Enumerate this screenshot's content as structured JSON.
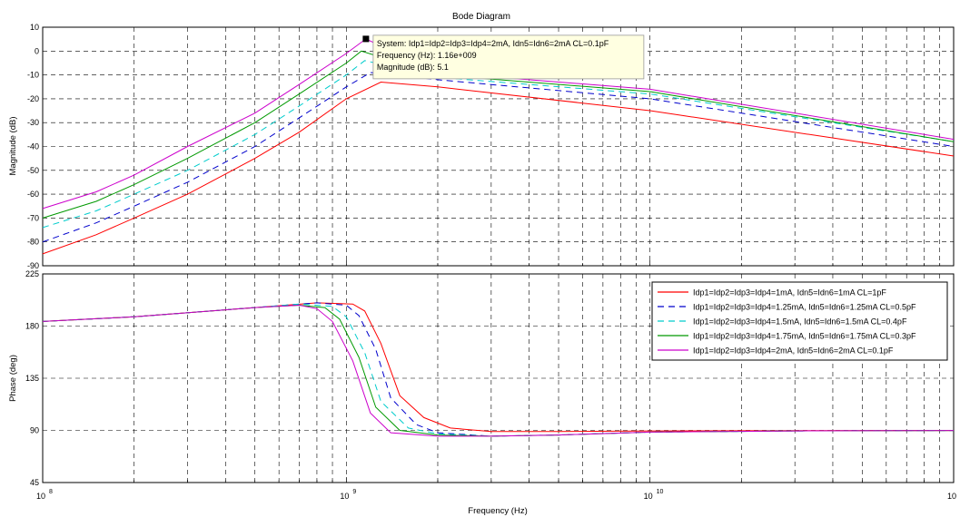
{
  "chart_data": {
    "type": "line",
    "title": "Bode Diagram",
    "xlabel": "Frequency  (Hz)",
    "x_scale": "log",
    "xlim": [
      100000000,
      100000000000
    ],
    "x_ticks": [
      {
        "value": 100000000,
        "base": "10",
        "exp": "8"
      },
      {
        "value": 1000000000,
        "base": "10",
        "exp": "9"
      },
      {
        "value": 10000000000,
        "base": "10",
        "exp": "10"
      },
      {
        "value": 100000000000,
        "base": "10",
        "exp": "11"
      }
    ],
    "grid": true,
    "legend_position": "top-right of phase plot",
    "series": [
      {
        "name": "Idp1=Idp2=Idp3=Idp4=1mA, Idn5=Idn6=1mA CL=1pF",
        "color": "#ff0000",
        "dash": "solid",
        "magnitude": {
          "x": [
            100000000.0,
            150000000.0,
            200000000.0,
            300000000.0,
            500000000.0,
            700000000.0,
            1000000000.0,
            1300000000.0,
            2000000000.0,
            10000000000.0,
            100000000000.0
          ],
          "y": [
            -85,
            -77,
            -70,
            -60,
            -45,
            -34,
            -20,
            -13,
            -15,
            -25,
            -44
          ]
        },
        "phase": {
          "x": [
            100000000.0,
            200000000.0,
            500000000.0,
            800000000.0,
            1050000000.0,
            1150000000.0,
            1300000000.0,
            1500000000.0,
            1800000000.0,
            2200000000.0,
            3000000000.0,
            5000000000.0,
            10000000000.0,
            30000000000.0,
            100000000000.0
          ],
          "y": [
            184,
            188,
            196,
            200,
            199,
            193,
            165,
            120,
            101,
            92,
            89,
            89,
            89.5,
            89.8,
            89.9
          ]
        }
      },
      {
        "name": "Idp1=Idp2=Idp3=Idp4=1.25mA, Idn5=Idn6=1.25mA CL=0.5pF",
        "color": "#0000cc",
        "dash": "7,5",
        "magnitude": {
          "x": [
            100000000.0,
            150000000.0,
            200000000.0,
            300000000.0,
            500000000.0,
            700000000.0,
            1000000000.0,
            1200000000.0,
            2000000000.0,
            10000000000.0,
            100000000000.0
          ],
          "y": [
            -80,
            -72,
            -65,
            -55,
            -40,
            -28,
            -15,
            -9,
            -12,
            -20,
            -40
          ]
        },
        "phase": {
          "x": [
            100000000.0,
            200000000.0,
            500000000.0,
            800000000.0,
            1000000000.0,
            1100000000.0,
            1250000000.0,
            1400000000.0,
            1700000000.0,
            2000000000.0,
            3000000000.0,
            5000000000.0,
            10000000000.0,
            30000000000.0,
            100000000000.0
          ],
          "y": [
            184,
            188,
            196,
            200,
            198,
            189,
            160,
            118,
            95,
            88,
            85,
            86,
            88.5,
            89.5,
            89.9
          ]
        }
      },
      {
        "name": "Idp1=Idp2=Idp3=Idp4=1.5mA, Idn5=Idn6=1.5mA CL=0.4pF",
        "color": "#00cccc",
        "dash": "7,5",
        "magnitude": {
          "x": [
            100000000.0,
            150000000.0,
            200000000.0,
            300000000.0,
            500000000.0,
            700000000.0,
            1000000000.0,
            1150000000.0,
            2000000000.0,
            10000000000.0,
            100000000000.0
          ],
          "y": [
            -74,
            -67,
            -60,
            -50,
            -35,
            -23,
            -10,
            -4,
            -11,
            -18,
            -38
          ]
        },
        "phase": {
          "x": [
            100000000.0,
            200000000.0,
            500000000.0,
            700000000.0,
            900000000.0,
            1000000000.0,
            1150000000.0,
            1300000000.0,
            1600000000.0,
            2000000000.0,
            3000000000.0,
            5000000000.0,
            10000000000.0,
            30000000000.0,
            100000000000.0
          ],
          "y": [
            184,
            188,
            196,
            199,
            197,
            188,
            157,
            115,
            92,
            87,
            85,
            86,
            88.5,
            89.5,
            89.9
          ]
        }
      },
      {
        "name": "Idp1=Idp2=Idp3=Idp4=1.75mA, Idn5=Idn6=1.75mA CL=0.3pF",
        "color": "#009900",
        "dash": "solid",
        "magnitude": {
          "x": [
            100000000.0,
            150000000.0,
            200000000.0,
            300000000.0,
            500000000.0,
            700000000.0,
            1000000000.0,
            1120000000.0,
            2000000000.0,
            10000000000.0,
            100000000000.0
          ],
          "y": [
            -70,
            -63,
            -56,
            -45,
            -30,
            -18,
            -5,
            0,
            -10,
            -17,
            -38
          ]
        },
        "phase": {
          "x": [
            100000000.0,
            200000000.0,
            500000000.0,
            700000000.0,
            850000000.0,
            950000000.0,
            1100000000.0,
            1250000000.0,
            1500000000.0,
            2000000000.0,
            3000000000.0,
            5000000000.0,
            10000000000.0,
            30000000000.0,
            100000000000.0
          ],
          "y": [
            184,
            188,
            196,
            198,
            196,
            186,
            153,
            110,
            90,
            86,
            85,
            86,
            88.5,
            89.5,
            89.9
          ]
        }
      },
      {
        "name": "Idp1=Idp2=Idp3=Idp4=2mA, Idn5=Idn6=2mA CL=0.1pF",
        "color": "#cc00cc",
        "dash": "solid",
        "magnitude": {
          "x": [
            100000000.0,
            150000000.0,
            200000000.0,
            300000000.0,
            500000000.0,
            700000000.0,
            1000000000.0,
            1160000000.0,
            2000000000.0,
            10000000000.0,
            100000000000.0
          ],
          "y": [
            -66,
            -59,
            -52,
            -40,
            -26,
            -14,
            -1,
            5.1,
            -9,
            -16,
            -37
          ]
        },
        "phase": {
          "x": [
            100000000.0,
            200000000.0,
            500000000.0,
            700000000.0,
            800000000.0,
            900000000.0,
            1050000000.0,
            1200000000.0,
            1400000000.0,
            2000000000.0,
            3000000000.0,
            5000000000.0,
            10000000000.0,
            30000000000.0,
            100000000000.0
          ],
          "y": [
            184,
            188,
            196,
            198,
            195,
            184,
            150,
            105,
            88,
            85,
            85,
            86,
            88.5,
            89.5,
            89.9
          ]
        }
      }
    ],
    "magnitude_axis": {
      "ylabel": "Magnitude (dB)",
      "ylim": [
        -90,
        10
      ],
      "ticks": [
        10,
        0,
        -10,
        -20,
        -30,
        -40,
        -50,
        -60,
        -70,
        -80,
        -90
      ]
    },
    "phase_axis": {
      "ylabel": "Phase (deg)",
      "ylim": [
        45,
        225
      ],
      "ticks": [
        225,
        180,
        135,
        90,
        45
      ]
    },
    "datatip": {
      "line1": "System: Idp1=Idp2=Idp3=Idp4=2mA, Idn5=Idn6=2mA CL=0.1pF",
      "line2": "Frequency (Hz): 1.16e+009",
      "line3": "Magnitude (dB): 5.1",
      "x": 1160000000,
      "y": 5.1
    }
  }
}
